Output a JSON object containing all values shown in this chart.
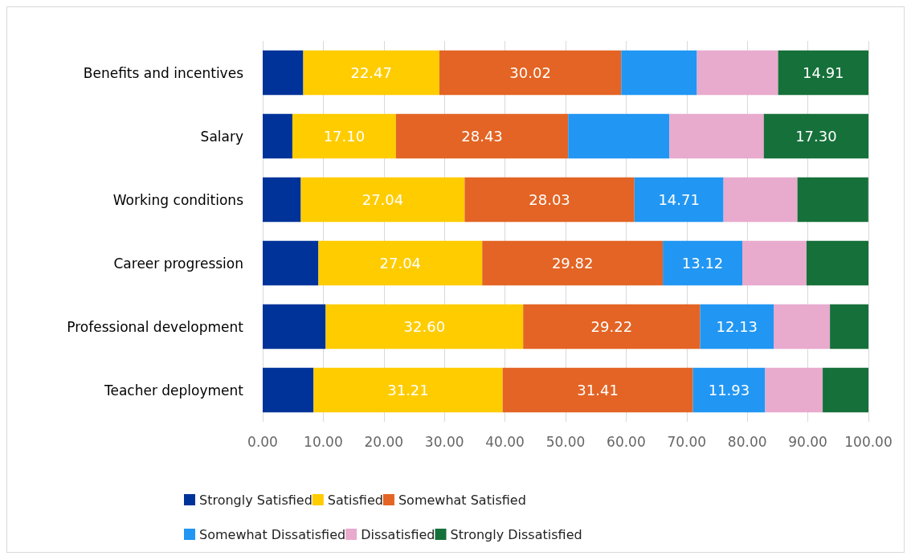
{
  "chart_data": {
    "type": "bar",
    "orientation": "horizontal",
    "stacked": true,
    "categories": [
      "Benefits and incentives",
      "Salary",
      "Working conditions",
      "Career progression",
      "Professional development",
      "Teacher deployment"
    ],
    "series": [
      {
        "name": "Strongly Satisfied",
        "color": "#003399",
        "values": [
          6.7,
          4.9,
          6.3,
          9.2,
          10.4,
          8.4
        ],
        "value_labels": [
          null,
          null,
          null,
          null,
          null,
          null
        ]
      },
      {
        "name": "Satisfied",
        "color": "#ffcc00",
        "values": [
          22.47,
          17.1,
          27.04,
          27.04,
          32.6,
          31.21
        ],
        "value_labels": [
          "22.47",
          "17.10",
          "27.04",
          "27.04",
          "32.60",
          "31.21"
        ]
      },
      {
        "name": "Somewhat Satisfied",
        "color": "#e36424",
        "values": [
          30.02,
          28.43,
          28.03,
          29.82,
          29.22,
          31.41
        ],
        "value_labels": [
          "30.02",
          "28.43",
          "28.03",
          "29.82",
          "29.22",
          "31.41"
        ]
      },
      {
        "name": "Somewhat Dissatisfied",
        "color": "#2196f3",
        "values": [
          12.5,
          16.7,
          14.71,
          13.12,
          12.13,
          11.93
        ],
        "value_labels": [
          null,
          null,
          "14.71",
          "13.12",
          "12.13",
          "11.93"
        ]
      },
      {
        "name": "Dissatisfied",
        "color": "#e8aacd",
        "values": [
          13.4,
          15.6,
          12.2,
          10.6,
          9.3,
          9.5
        ],
        "value_labels": [
          null,
          null,
          null,
          null,
          null,
          null
        ]
      },
      {
        "name": "Strongly Dissatisfied",
        "color": "#16703a",
        "values": [
          14.91,
          17.3,
          11.7,
          10.3,
          6.4,
          7.6
        ],
        "value_labels": [
          "14.91",
          "17.30",
          null,
          null,
          null,
          null
        ]
      }
    ],
    "xlim": [
      0,
      100
    ],
    "xticks": [
      {
        "value": 0,
        "label": "0.00"
      },
      {
        "value": 10,
        "label": "10.00"
      },
      {
        "value": 20,
        "label": "20.00"
      },
      {
        "value": 30,
        "label": "30.00"
      },
      {
        "value": 40,
        "label": "40.00"
      },
      {
        "value": 50,
        "label": "50.00"
      },
      {
        "value": 60,
        "label": "60.00"
      },
      {
        "value": 70,
        "label": "70.00"
      },
      {
        "value": 80,
        "label": "80.00"
      },
      {
        "value": 90,
        "label": "90.00"
      },
      {
        "value": 100,
        "label": "100.00"
      }
    ],
    "grid": "x",
    "legend": "bottom"
  }
}
